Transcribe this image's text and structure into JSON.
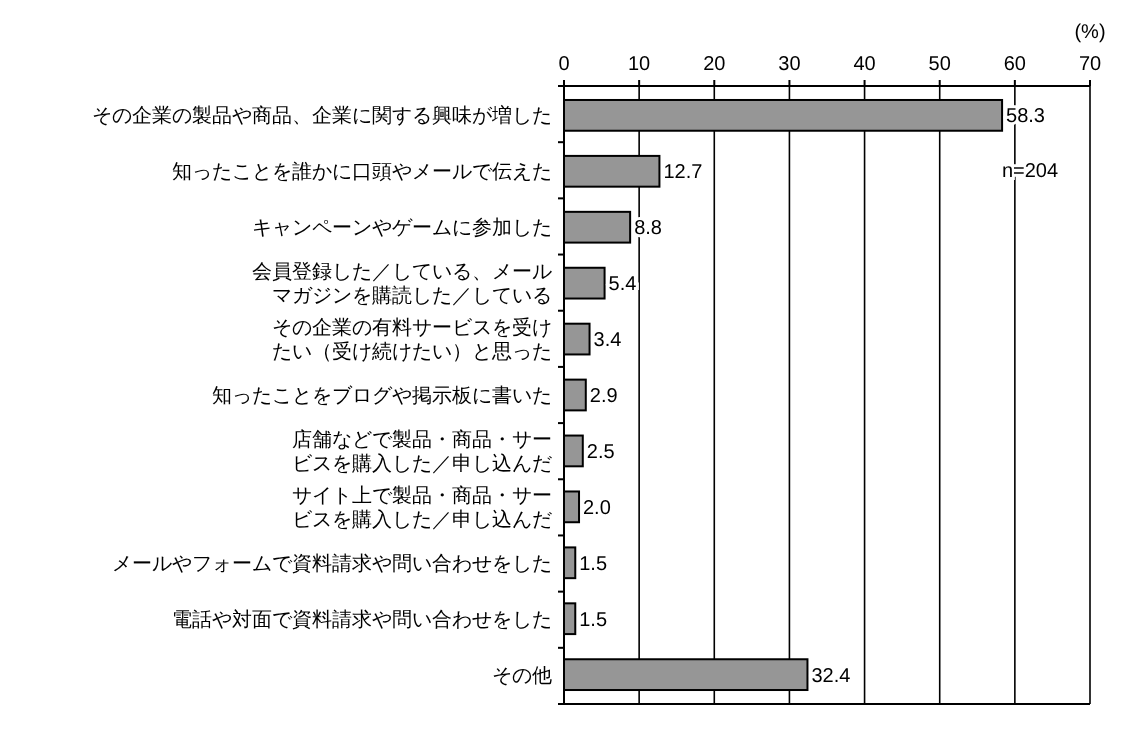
{
  "chart_data": {
    "type": "bar",
    "orientation": "horizontal",
    "xlabel": "(%)",
    "categories": [
      "その企業の製品や商品、企業に関する興味が増した",
      "知ったことを誰かに口頭やメールで伝えた",
      "キャンペーンやゲームに参加した",
      "会員登録した／している、メールマガジンを購読した／している",
      "その企業の有料サービスを受けたい（受け続けたい）と思った",
      "知ったことをブログや掲示板に書いた",
      "店舗などで製品・商品・サービスを購入した／申し込んだ",
      "サイト上で製品・商品・サービスを購入した／申し込んだ",
      "メールやフォームで資料請求や問い合わせをした",
      "電話や対面で資料請求や問い合わせをした",
      "その他"
    ],
    "values": [
      58.3,
      12.7,
      8.8,
      5.4,
      3.4,
      2.9,
      2.5,
      2.0,
      1.5,
      1.5,
      32.4
    ],
    "value_labels": [
      "58.3",
      "12.7",
      "8.8",
      "5.4",
      "3.4",
      "2.9",
      "2.5",
      "2.0",
      "1.5",
      "1.5",
      "32.4"
    ],
    "color": "#969696",
    "xlim": [
      0,
      70
    ],
    "xticks": [
      0,
      10,
      20,
      30,
      40,
      50,
      60,
      70
    ],
    "grid": "x",
    "annotations": [
      "n=204"
    ]
  }
}
